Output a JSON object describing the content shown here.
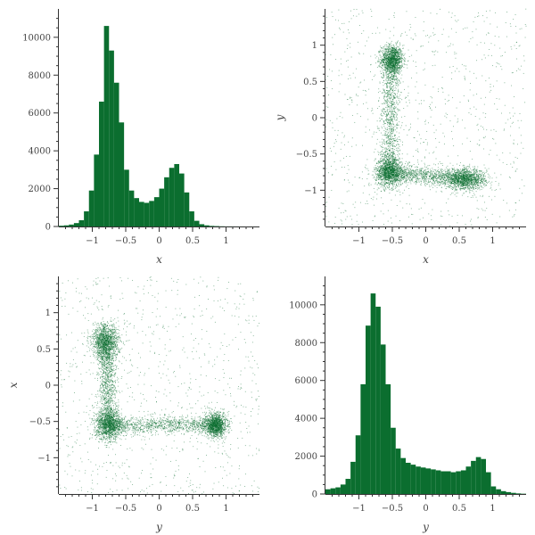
{
  "colors": {
    "hist": "#0b6e2f",
    "scatter": "#0b6e2f",
    "axis": "#333333",
    "text": "#444444"
  },
  "chart_data": [
    {
      "type": "bar",
      "panel": "top-left",
      "xlabel": "x",
      "ylabel": "",
      "xlim": [
        -1.5,
        1.5
      ],
      "ylim": [
        0,
        11500
      ],
      "xticks": [
        -1,
        -0.5,
        0,
        0.5,
        1
      ],
      "xtick_labels": [
        "−1",
        "−0.5",
        "0",
        "0.5",
        "1"
      ],
      "yticks": [
        0,
        2000,
        4000,
        6000,
        8000,
        10000
      ],
      "ytick_labels": [
        "0",
        "2000",
        "4000",
        "6000",
        "8000",
        "10000"
      ],
      "bin_start": -1.5,
      "bin_width": 0.075,
      "values": [
        40,
        60,
        100,
        180,
        330,
        800,
        1900,
        3800,
        6600,
        10600,
        9300,
        7600,
        5500,
        3000,
        1900,
        1500,
        1300,
        1250,
        1350,
        1550,
        2000,
        2600,
        3100,
        3300,
        2800,
        1800,
        800,
        300,
        120,
        60,
        30,
        20,
        10,
        5,
        5,
        3,
        2,
        1,
        1,
        1
      ]
    },
    {
      "type": "scatter",
      "panel": "top-right",
      "xlabel": "x",
      "ylabel": "y",
      "xlim": [
        -1.5,
        1.5
      ],
      "ylim": [
        -1.5,
        1.5
      ],
      "xticks": [
        -1,
        -0.5,
        0,
        0.5,
        1
      ],
      "xtick_labels": [
        "−1",
        "−0.5",
        "0",
        "0.5",
        "1"
      ],
      "yticks": [
        -1,
        -0.5,
        0,
        0.5,
        1
      ],
      "ytick_labels": [
        "−1",
        "−0.5",
        "0",
        "0.5",
        "1"
      ],
      "clusters": [
        {
          "cx": -0.5,
          "cy": 0.8,
          "sx": 0.08,
          "sy": 0.1
        },
        {
          "cx": -0.55,
          "cy": -0.75,
          "sx": 0.1,
          "sy": 0.1
        },
        {
          "cx": 0.6,
          "cy": -0.85,
          "sx": 0.15,
          "sy": 0.07
        }
      ]
    },
    {
      "type": "scatter",
      "panel": "bottom-left",
      "xlabel": "y",
      "ylabel": "x",
      "xlim": [
        -1.5,
        1.5
      ],
      "ylim": [
        -1.5,
        1.5
      ],
      "xticks": [
        -1,
        -0.5,
        0,
        0.5,
        1
      ],
      "xtick_labels": [
        "−1",
        "−0.5",
        "0",
        "0.5",
        "1"
      ],
      "yticks": [
        -1,
        -0.5,
        0,
        0.5,
        1
      ],
      "ytick_labels": [
        "−1",
        "−0.5",
        "0",
        "0.5",
        "1"
      ],
      "clusters": [
        {
          "cx": -0.8,
          "cy": 0.6,
          "sx": 0.1,
          "sy": 0.12
        },
        {
          "cx": -0.75,
          "cy": -0.55,
          "sx": 0.1,
          "sy": 0.1
        },
        {
          "cx": 0.85,
          "cy": -0.55,
          "sx": 0.08,
          "sy": 0.08
        }
      ]
    },
    {
      "type": "bar",
      "panel": "bottom-right",
      "xlabel": "y",
      "ylabel": "",
      "xlim": [
        -1.5,
        1.5
      ],
      "ylim": [
        0,
        11500
      ],
      "xticks": [
        -1,
        -0.5,
        0,
        0.5,
        1
      ],
      "xtick_labels": [
        "−1",
        "−0.5",
        "0",
        "0.5",
        "1"
      ],
      "yticks": [
        0,
        2000,
        4000,
        6000,
        8000,
        10000
      ],
      "ytick_labels": [
        "0",
        "2000",
        "4000",
        "6000",
        "8000",
        "10000"
      ],
      "bin_start": -1.5,
      "bin_width": 0.075,
      "values": [
        250,
        300,
        350,
        500,
        800,
        1700,
        3100,
        5800,
        8900,
        10600,
        9900,
        7900,
        5800,
        3500,
        2400,
        1900,
        1650,
        1550,
        1450,
        1400,
        1350,
        1300,
        1250,
        1200,
        1200,
        1150,
        1200,
        1250,
        1450,
        1750,
        1950,
        1850,
        1150,
        400,
        250,
        150,
        100,
        60,
        30,
        15
      ]
    }
  ]
}
